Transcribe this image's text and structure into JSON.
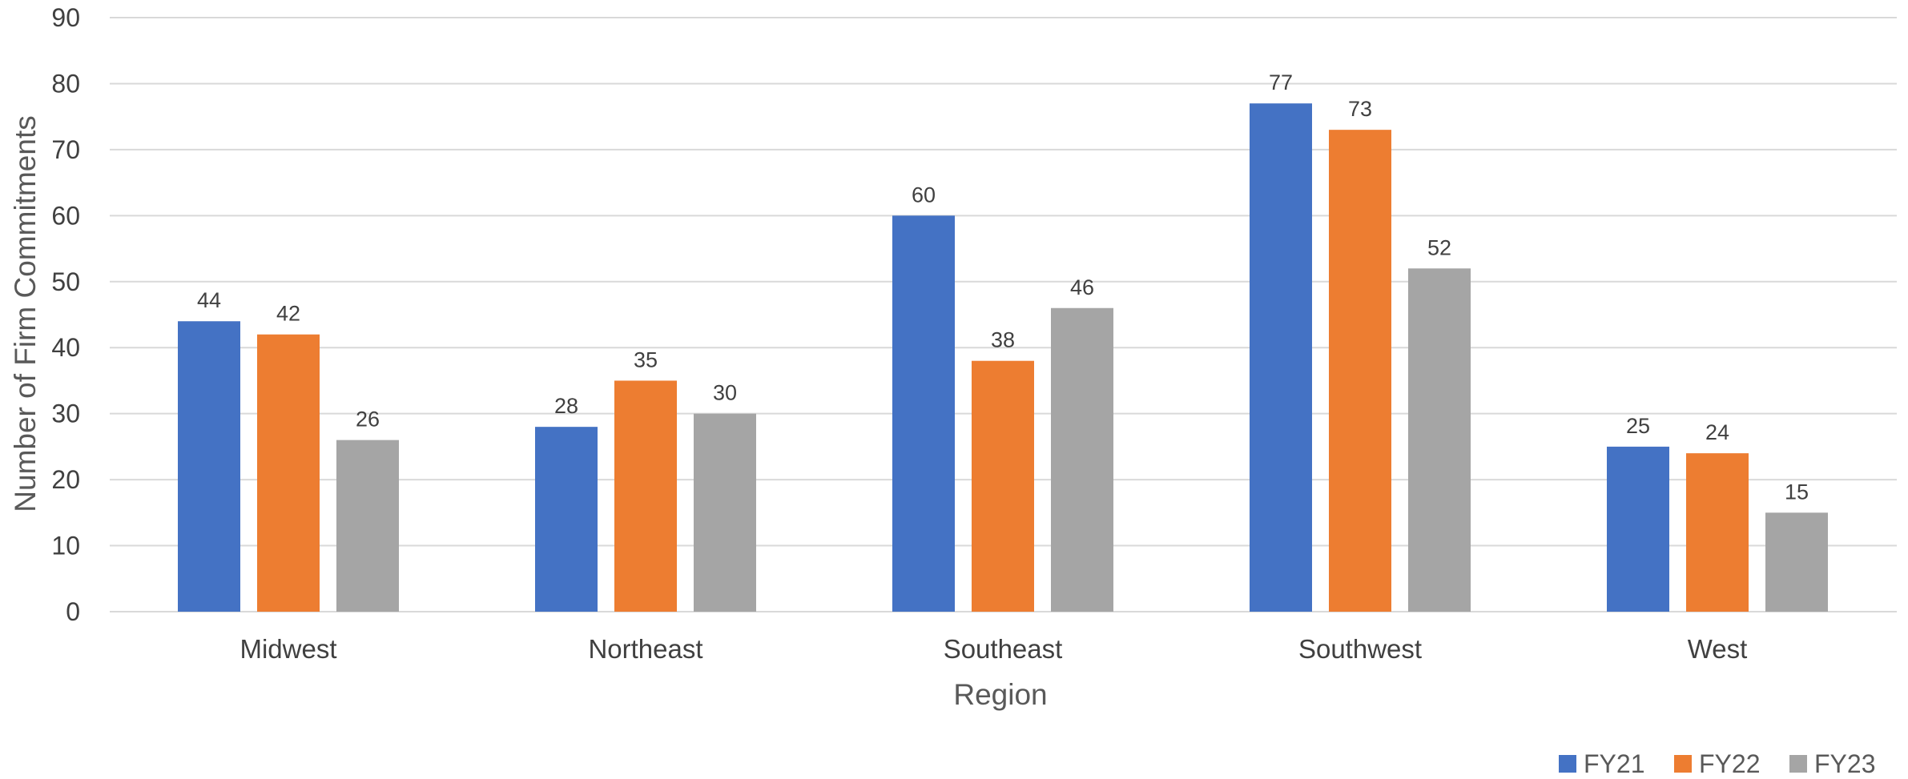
{
  "chart_data": {
    "type": "bar",
    "title": "",
    "xlabel": "Region",
    "ylabel": "Number of Firm Commitments",
    "ylim": [
      0,
      90
    ],
    "yticks": [
      0,
      10,
      20,
      30,
      40,
      50,
      60,
      70,
      80,
      90
    ],
    "grid": true,
    "legend_position": "bottom-right",
    "categories": [
      "Midwest",
      "Northeast",
      "Southeast",
      "Southwest",
      "West"
    ],
    "series": [
      {
        "name": "FY21",
        "color": "#4472C4",
        "values": [
          44,
          28,
          60,
          77,
          25
        ]
      },
      {
        "name": "FY22",
        "color": "#ED7D31",
        "values": [
          42,
          35,
          38,
          73,
          24
        ]
      },
      {
        "name": "FY23",
        "color": "#A5A5A5",
        "values": [
          26,
          30,
          46,
          52,
          15
        ]
      }
    ]
  }
}
